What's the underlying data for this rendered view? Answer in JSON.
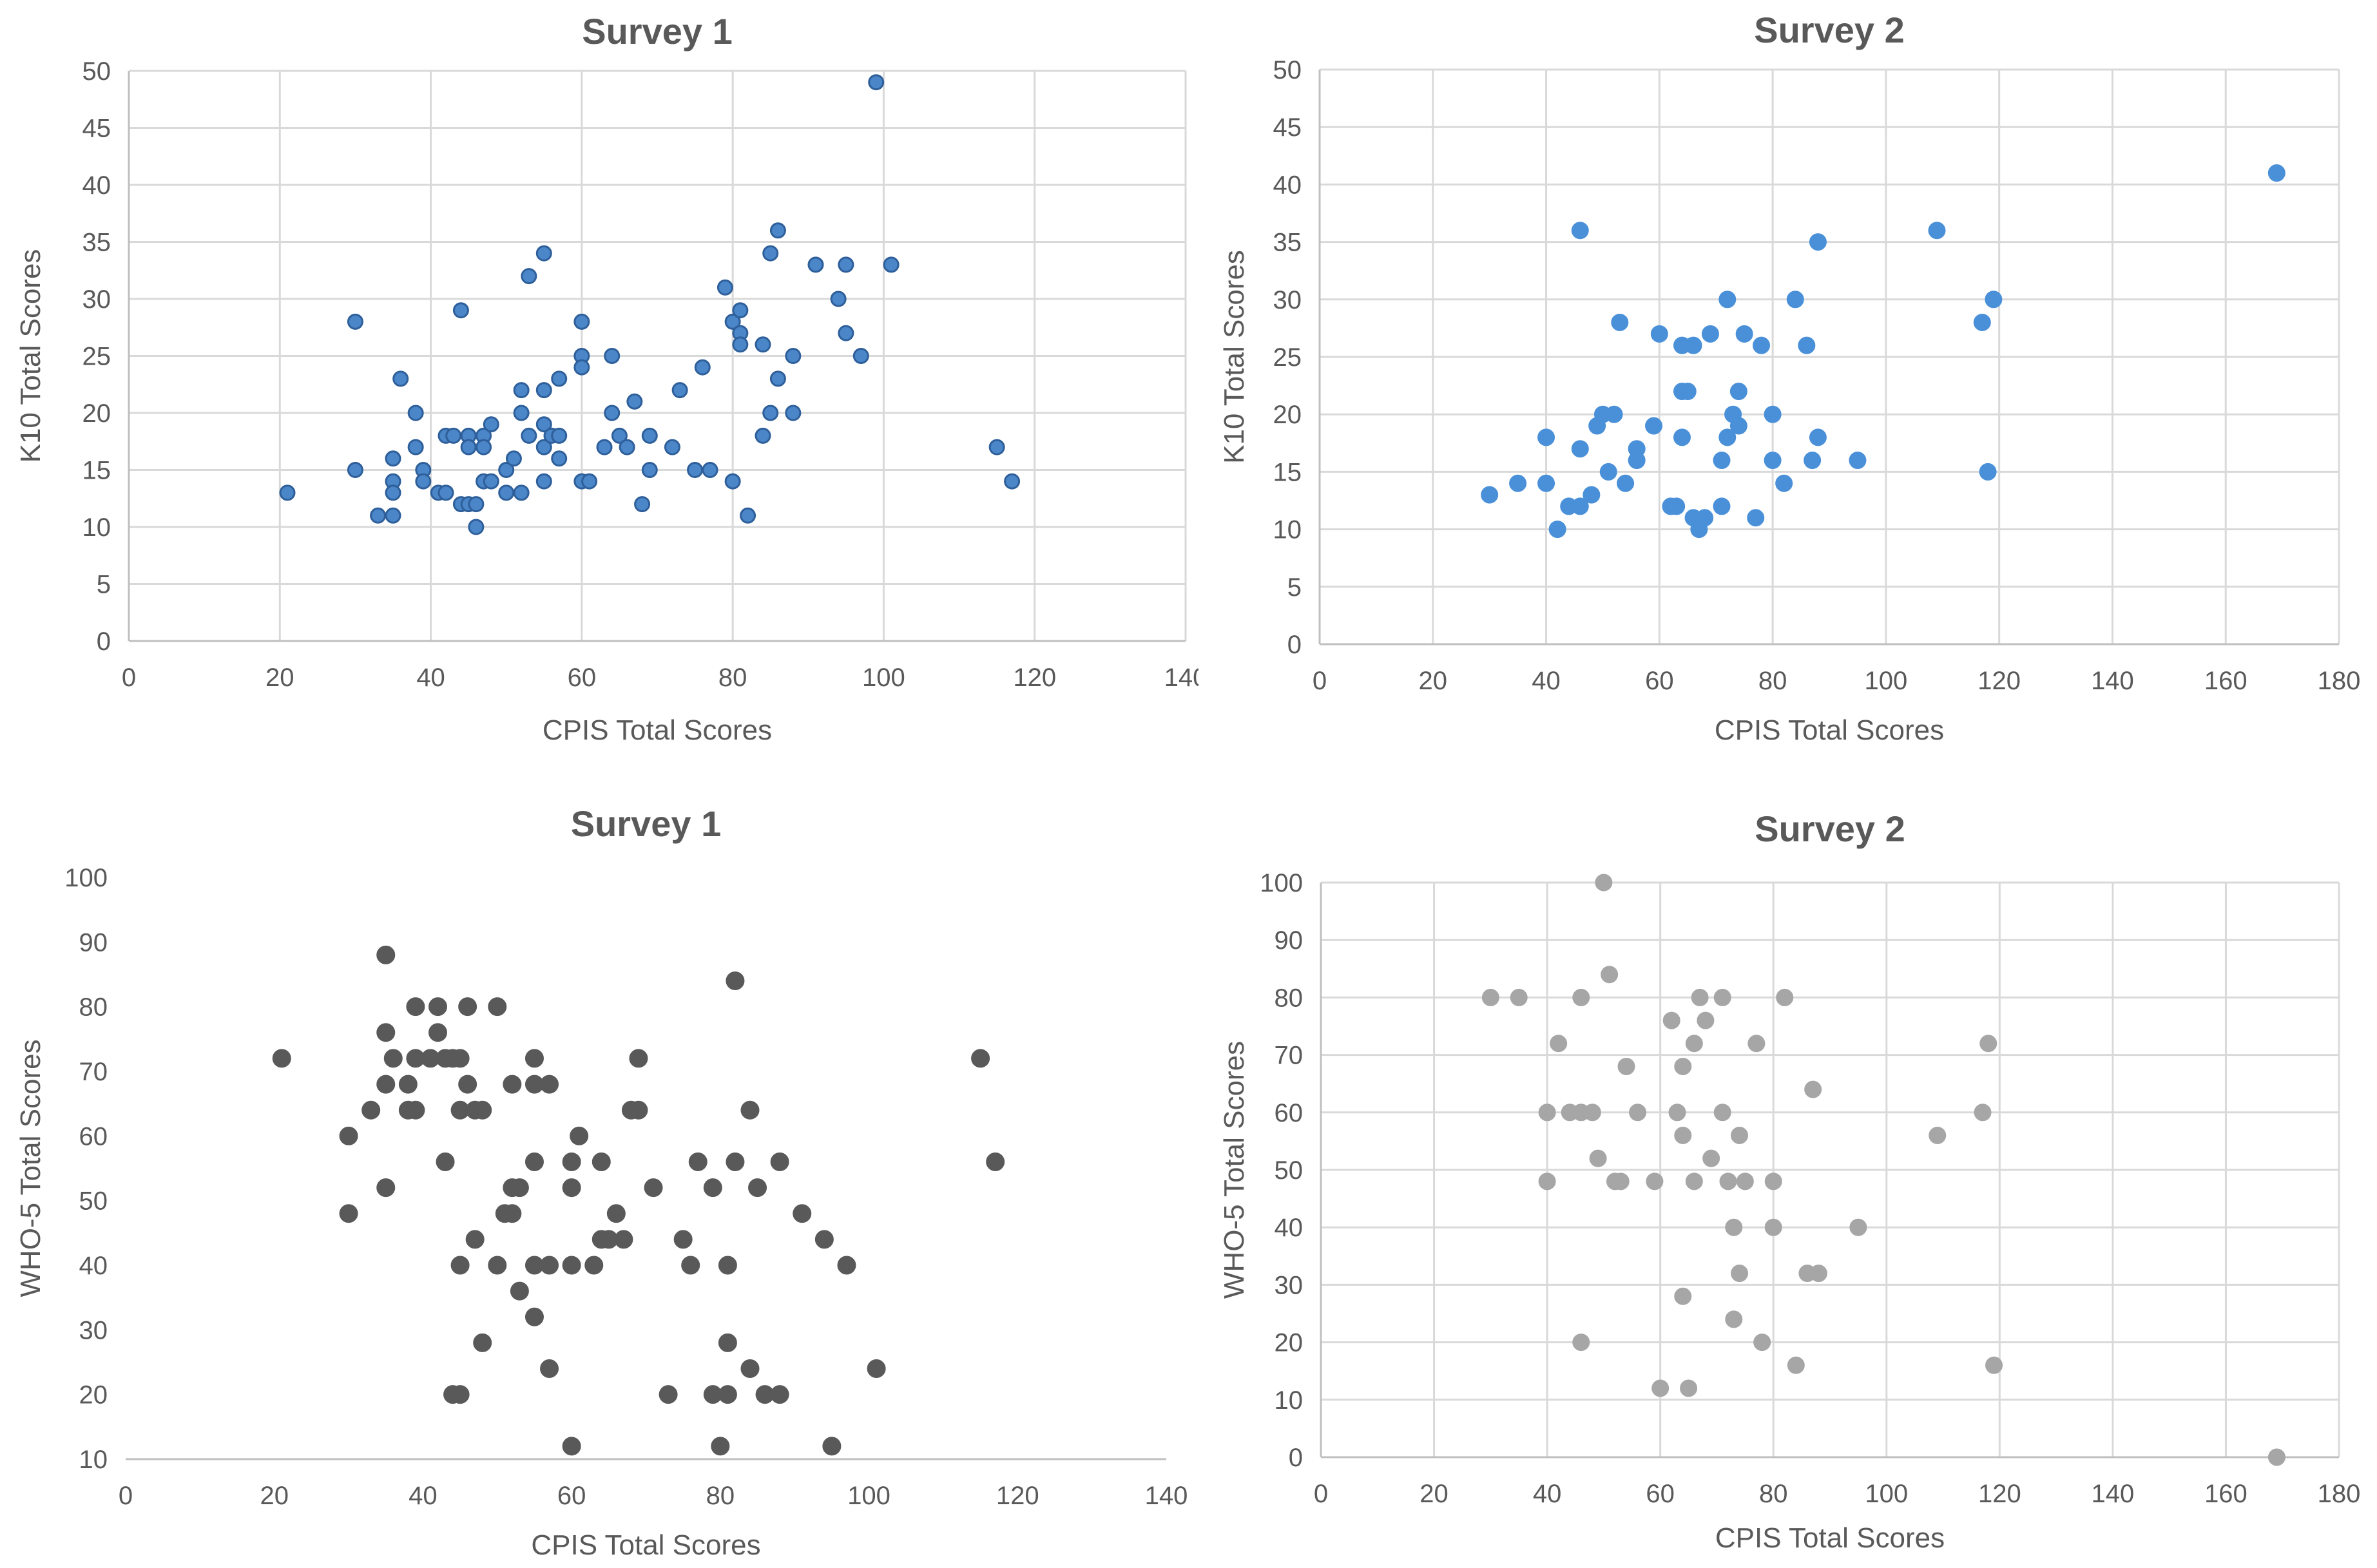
{
  "chart_data": [
    {
      "type": "scatter",
      "title": "Survey 1",
      "xlabel": "CPIS Total Scores",
      "ylabel": "K10 Total Scores",
      "xlim": [
        0,
        140
      ],
      "xstep": 20,
      "ylim": [
        0,
        50
      ],
      "ystep": 5,
      "grid": true,
      "marker_color": "#4a86c8",
      "marker_edge": "#2e5f9a",
      "points": [
        [
          21,
          13
        ],
        [
          30,
          28
        ],
        [
          30,
          15
        ],
        [
          33,
          11
        ],
        [
          35,
          16
        ],
        [
          35,
          14
        ],
        [
          35,
          13
        ],
        [
          35,
          11
        ],
        [
          36,
          23
        ],
        [
          38,
          20
        ],
        [
          38,
          17
        ],
        [
          39,
          15
        ],
        [
          39,
          14
        ],
        [
          41,
          13
        ],
        [
          42,
          18
        ],
        [
          42,
          13
        ],
        [
          43,
          18
        ],
        [
          44,
          29
        ],
        [
          44,
          12
        ],
        [
          45,
          18
        ],
        [
          45,
          17
        ],
        [
          45,
          12
        ],
        [
          46,
          12
        ],
        [
          46,
          10
        ],
        [
          47,
          18
        ],
        [
          47,
          17
        ],
        [
          47,
          14
        ],
        [
          48,
          19
        ],
        [
          48,
          14
        ],
        [
          50,
          15
        ],
        [
          50,
          13
        ],
        [
          51,
          16
        ],
        [
          52,
          22
        ],
        [
          52,
          20
        ],
        [
          52,
          13
        ],
        [
          53,
          32
        ],
        [
          53,
          18
        ],
        [
          55,
          34
        ],
        [
          55,
          22
        ],
        [
          55,
          19
        ],
        [
          55,
          17
        ],
        [
          55,
          14
        ],
        [
          56,
          18
        ],
        [
          57,
          23
        ],
        [
          57,
          18
        ],
        [
          57,
          16
        ],
        [
          60,
          28
        ],
        [
          60,
          25
        ],
        [
          60,
          24
        ],
        [
          60,
          14
        ],
        [
          61,
          14
        ],
        [
          63,
          17
        ],
        [
          64,
          25
        ],
        [
          64,
          20
        ],
        [
          65,
          18
        ],
        [
          66,
          17
        ],
        [
          67,
          21
        ],
        [
          68,
          12
        ],
        [
          69,
          18
        ],
        [
          69,
          15
        ],
        [
          72,
          17
        ],
        [
          73,
          22
        ],
        [
          75,
          15
        ],
        [
          76,
          24
        ],
        [
          77,
          15
        ],
        [
          79,
          31
        ],
        [
          80,
          28
        ],
        [
          80,
          14
        ],
        [
          81,
          29
        ],
        [
          81,
          27
        ],
        [
          81,
          26
        ],
        [
          82,
          11
        ],
        [
          84,
          26
        ],
        [
          84,
          18
        ],
        [
          85,
          34
        ],
        [
          85,
          20
        ],
        [
          86,
          36
        ],
        [
          86,
          23
        ],
        [
          88,
          25
        ],
        [
          88,
          20
        ],
        [
          91,
          33
        ],
        [
          94,
          30
        ],
        [
          95,
          33
        ],
        [
          95,
          27
        ],
        [
          97,
          25
        ],
        [
          99,
          49
        ],
        [
          101,
          33
        ],
        [
          115,
          17
        ],
        [
          117,
          14
        ]
      ]
    },
    {
      "type": "scatter",
      "title": "Survey 2",
      "xlabel": "CPIS Total Scores",
      "ylabel": "K10 Total Scores",
      "xlim": [
        0,
        180
      ],
      "xstep": 20,
      "ylim": [
        0,
        50
      ],
      "ystep": 5,
      "grid": true,
      "marker_color": "#4a90d9",
      "marker_edge": "#4a90d9",
      "points": [
        [
          30,
          13
        ],
        [
          35,
          14
        ],
        [
          40,
          18
        ],
        [
          40,
          14
        ],
        [
          42,
          10
        ],
        [
          44,
          12
        ],
        [
          46,
          36
        ],
        [
          46,
          17
        ],
        [
          46,
          12
        ],
        [
          48,
          13
        ],
        [
          49,
          19
        ],
        [
          50,
          20
        ],
        [
          51,
          15
        ],
        [
          52,
          20
        ],
        [
          53,
          28
        ],
        [
          54,
          14
        ],
        [
          56,
          17
        ],
        [
          56,
          16
        ],
        [
          59,
          19
        ],
        [
          60,
          27
        ],
        [
          62,
          12
        ],
        [
          63,
          12
        ],
        [
          64,
          26
        ],
        [
          64,
          22
        ],
        [
          64,
          18
        ],
        [
          65,
          22
        ],
        [
          66,
          26
        ],
        [
          66,
          11
        ],
        [
          67,
          10
        ],
        [
          68,
          11
        ],
        [
          69,
          27
        ],
        [
          71,
          16
        ],
        [
          71,
          12
        ],
        [
          72,
          30
        ],
        [
          72,
          18
        ],
        [
          73,
          20
        ],
        [
          74,
          22
        ],
        [
          74,
          19
        ],
        [
          75,
          27
        ],
        [
          77,
          11
        ],
        [
          78,
          26
        ],
        [
          80,
          20
        ],
        [
          80,
          16
        ],
        [
          82,
          14
        ],
        [
          84,
          30
        ],
        [
          86,
          26
        ],
        [
          87,
          16
        ],
        [
          88,
          35
        ],
        [
          88,
          18
        ],
        [
          95,
          16
        ],
        [
          109,
          36
        ],
        [
          117,
          28
        ],
        [
          118,
          15
        ],
        [
          119,
          30
        ],
        [
          169,
          41
        ]
      ]
    },
    {
      "type": "scatter",
      "title": "Survey 1",
      "xlabel": "CPIS Total Scores",
      "ylabel": "WHO-5 Total Scores",
      "xlim": [
        0,
        140
      ],
      "xstep": 20,
      "ylim": [
        10,
        100
      ],
      "ystep": 10,
      "grid": false,
      "marker_color": "#595959",
      "marker_edge": "#595959",
      "points": [
        [
          21,
          72
        ],
        [
          30,
          60
        ],
        [
          30,
          48
        ],
        [
          33,
          64
        ],
        [
          35,
          88
        ],
        [
          35,
          76
        ],
        [
          35,
          68
        ],
        [
          35,
          52
        ],
        [
          36,
          72
        ],
        [
          38,
          68
        ],
        [
          38,
          64
        ],
        [
          39,
          80
        ],
        [
          39,
          72
        ],
        [
          39,
          64
        ],
        [
          41,
          72
        ],
        [
          42,
          80
        ],
        [
          42,
          76
        ],
        [
          43,
          56
        ],
        [
          43,
          72
        ],
        [
          44,
          72
        ],
        [
          44,
          20
        ],
        [
          45,
          72
        ],
        [
          45,
          64
        ],
        [
          45,
          40
        ],
        [
          45,
          20
        ],
        [
          46,
          80
        ],
        [
          46,
          68
        ],
        [
          47,
          64
        ],
        [
          47,
          44
        ],
        [
          48,
          64
        ],
        [
          48,
          28
        ],
        [
          50,
          80
        ],
        [
          50,
          40
        ],
        [
          51,
          48
        ],
        [
          52,
          68
        ],
        [
          52,
          48
        ],
        [
          52,
          52
        ],
        [
          53,
          52
        ],
        [
          53,
          36
        ],
        [
          55,
          72
        ],
        [
          55,
          68
        ],
        [
          55,
          56
        ],
        [
          55,
          40
        ],
        [
          55,
          32
        ],
        [
          57,
          68
        ],
        [
          57,
          40
        ],
        [
          57,
          24
        ],
        [
          60,
          56
        ],
        [
          60,
          52
        ],
        [
          60,
          40
        ],
        [
          60,
          12
        ],
        [
          61,
          60
        ],
        [
          63,
          40
        ],
        [
          64,
          56
        ],
        [
          64,
          44
        ],
        [
          65,
          44
        ],
        [
          66,
          48
        ],
        [
          67,
          44
        ],
        [
          68,
          64
        ],
        [
          69,
          72
        ],
        [
          69,
          64
        ],
        [
          71,
          52
        ],
        [
          73,
          20
        ],
        [
          75,
          44
        ],
        [
          76,
          40
        ],
        [
          77,
          56
        ],
        [
          79,
          52
        ],
        [
          79,
          20
        ],
        [
          80,
          12
        ],
        [
          81,
          40
        ],
        [
          81,
          28
        ],
        [
          81,
          20
        ],
        [
          82,
          84
        ],
        [
          82,
          56
        ],
        [
          84,
          24
        ],
        [
          84,
          64
        ],
        [
          85,
          52
        ],
        [
          86,
          20
        ],
        [
          88,
          56
        ],
        [
          88,
          20
        ],
        [
          91,
          48
        ],
        [
          94,
          44
        ],
        [
          95,
          12
        ],
        [
          97,
          40
        ],
        [
          101,
          24
        ],
        [
          115,
          72
        ],
        [
          117,
          56
        ]
      ]
    },
    {
      "type": "scatter",
      "title": "Survey 2",
      "xlabel": "CPIS Total Scores",
      "ylabel": "WHO-5 Total Scores",
      "xlim": [
        0,
        180
      ],
      "xstep": 20,
      "ylim": [
        0,
        100
      ],
      "ystep": 10,
      "grid": true,
      "marker_color": "#a6a6a6",
      "marker_edge": "#a6a6a6",
      "points": [
        [
          30,
          80
        ],
        [
          35,
          80
        ],
        [
          40,
          60
        ],
        [
          40,
          48
        ],
        [
          42,
          72
        ],
        [
          44,
          60
        ],
        [
          46,
          80
        ],
        [
          46,
          60
        ],
        [
          46,
          20
        ],
        [
          48,
          60
        ],
        [
          49,
          52
        ],
        [
          50,
          100
        ],
        [
          51,
          84
        ],
        [
          52,
          48
        ],
        [
          53,
          48
        ],
        [
          54,
          68
        ],
        [
          56,
          60
        ],
        [
          59,
          48
        ],
        [
          60,
          12
        ],
        [
          62,
          76
        ],
        [
          63,
          60
        ],
        [
          64,
          68
        ],
        [
          64,
          56
        ],
        [
          64,
          28
        ],
        [
          65,
          12
        ],
        [
          66,
          72
        ],
        [
          66,
          48
        ],
        [
          67,
          80
        ],
        [
          68,
          76
        ],
        [
          69,
          52
        ],
        [
          71,
          80
        ],
        [
          71,
          60
        ],
        [
          72,
          48
        ],
        [
          73,
          40
        ],
        [
          73,
          24
        ],
        [
          74,
          56
        ],
        [
          74,
          32
        ],
        [
          75,
          48
        ],
        [
          77,
          72
        ],
        [
          78,
          20
        ],
        [
          80,
          48
        ],
        [
          80,
          40
        ],
        [
          82,
          80
        ],
        [
          84,
          16
        ],
        [
          86,
          32
        ],
        [
          87,
          64
        ],
        [
          88,
          32
        ],
        [
          95,
          40
        ],
        [
          109,
          56
        ],
        [
          117,
          60
        ],
        [
          118,
          72
        ],
        [
          119,
          16
        ],
        [
          169,
          0
        ]
      ]
    }
  ]
}
